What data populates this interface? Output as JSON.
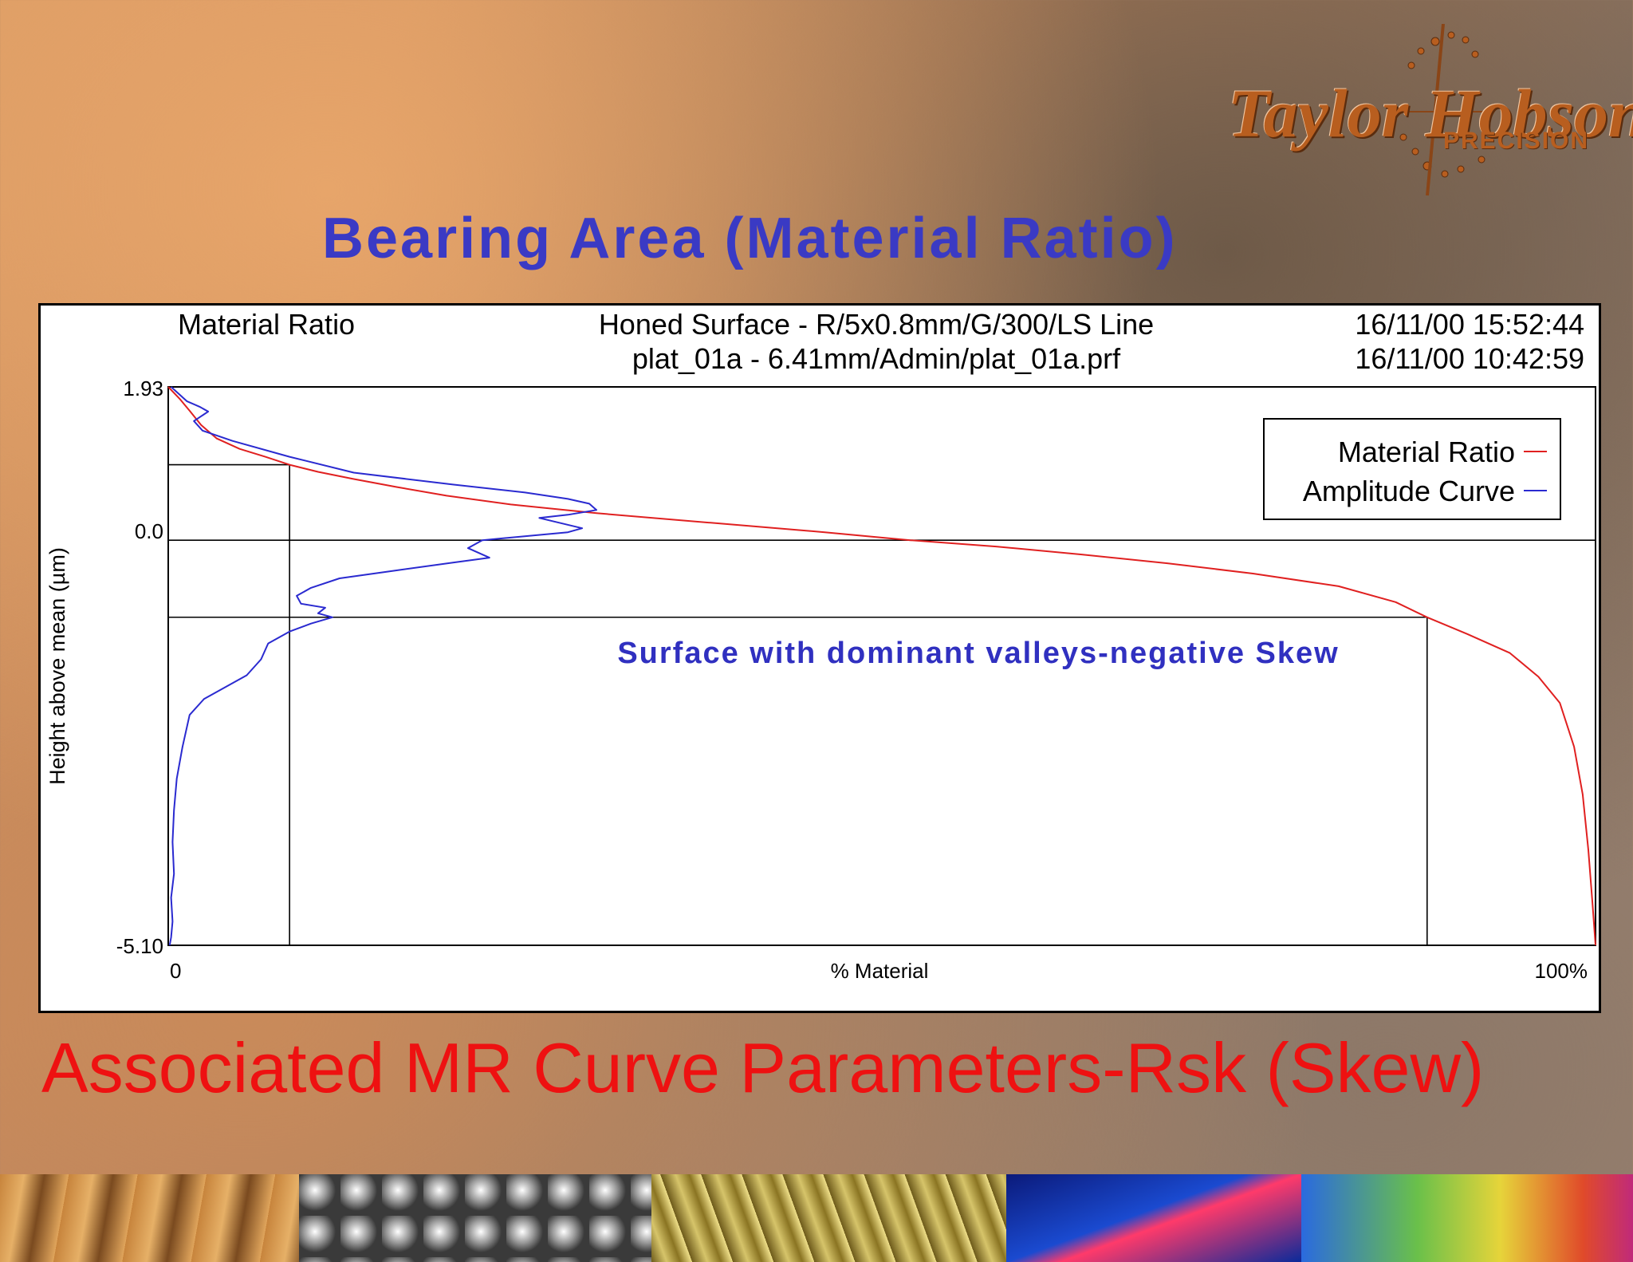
{
  "logo": {
    "name": "Taylor Hobson",
    "tagline": "PRECISION"
  },
  "slide_title": "Bearing Area (Material Ratio)",
  "slide_subtitle": "Associated MR Curve Parameters-Rsk (Skew)",
  "chart_header": {
    "left": "Material Ratio",
    "center_line1": "Honed Surface - R/5x0.8mm/G/300/LS Line",
    "center_line2": "plat_01a - 6.41mm/Admin/plat_01a.prf",
    "right_line1": "16/11/00 15:52:44",
    "right_line2": "16/11/00 10:42:59"
  },
  "chart_data": {
    "type": "line",
    "xlabel": "% Material",
    "ylabel": "Height above mean (µm)",
    "xlim": [
      0,
      100
    ],
    "ylim": [
      -5.1,
      1.93
    ],
    "x_tick_labels": [
      "0",
      "100%"
    ],
    "y_tick_labels": [
      "1.93",
      "0.0",
      "-5.10"
    ],
    "annotation": "Surface with dominant valleys-negative Skew",
    "legend_position": "top-right",
    "legend": [
      {
        "label": "Material Ratio",
        "color": "#e02020"
      },
      {
        "label": "Amplitude Curve",
        "color": "#2a2ad0"
      }
    ],
    "reference_lines": {
      "horizontal_y": [
        0.95,
        0.0,
        -0.97
      ],
      "vertical_x": [
        8.5,
        88.2
      ]
    },
    "series": [
      {
        "name": "Material Ratio",
        "color": "#e02020",
        "x": [
          0,
          0.8,
          1.5,
          2.3,
          3.4,
          5.0,
          6.8,
          8.5,
          10.5,
          13,
          16,
          19.5,
          24,
          30,
          38,
          46,
          52,
          58,
          64,
          70,
          76,
          82,
          86,
          88.2,
          91,
          94,
          96,
          97.5,
          98.5,
          99.1,
          99.5,
          99.8,
          100
        ],
        "y": [
          1.93,
          1.78,
          1.63,
          1.45,
          1.28,
          1.15,
          1.05,
          0.95,
          0.86,
          0.77,
          0.67,
          0.56,
          0.45,
          0.34,
          0.22,
          0.1,
          0.0,
          -0.08,
          -0.18,
          -0.29,
          -0.42,
          -0.58,
          -0.78,
          -0.97,
          -1.18,
          -1.42,
          -1.72,
          -2.05,
          -2.6,
          -3.2,
          -3.9,
          -4.6,
          -5.1
        ]
      },
      {
        "name": "Amplitude Curve",
        "color": "#2a2ad0",
        "x": [
          0.2,
          1.3,
          2.2,
          2.8,
          1.8,
          2.4,
          4.5,
          8.5,
          13,
          20,
          25,
          28,
          29.5,
          30,
          28,
          26,
          29,
          28,
          22,
          21,
          22.5,
          20,
          16,
          12,
          10,
          9,
          9.3,
          11,
          10.5,
          11.5,
          10,
          8.5,
          7,
          6.5,
          5.5,
          4,
          2.5,
          1.5,
          1.0,
          0.6,
          0.4,
          0.3,
          0.4,
          0.2,
          0.3,
          0.2,
          0.1
        ],
        "y": [
          1.93,
          1.75,
          1.68,
          1.62,
          1.5,
          1.38,
          1.25,
          1.05,
          0.85,
          0.7,
          0.6,
          0.52,
          0.46,
          0.38,
          0.32,
          0.28,
          0.15,
          0.1,
          0.0,
          -0.1,
          -0.22,
          -0.28,
          -0.38,
          -0.48,
          -0.6,
          -0.7,
          -0.8,
          -0.85,
          -0.92,
          -0.97,
          -1.05,
          -1.15,
          -1.3,
          -1.5,
          -1.7,
          -1.85,
          -2.0,
          -2.2,
          -2.6,
          -3.0,
          -3.4,
          -3.8,
          -4.2,
          -4.5,
          -4.8,
          -5.0,
          -5.1
        ]
      }
    ]
  }
}
